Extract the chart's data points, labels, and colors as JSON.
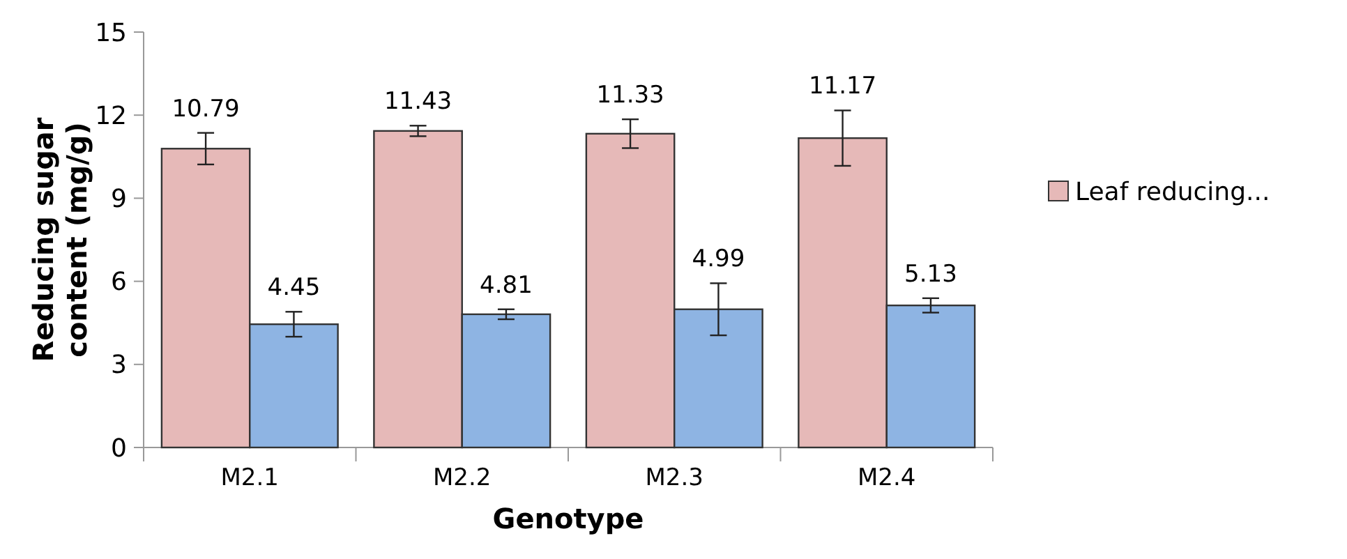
{
  "chart_data": {
    "type": "bar",
    "xlabel": "Genotype",
    "ylabel": "Reducing sugar content (mg/g)",
    "categories": [
      "M2.1",
      "M2.2",
      "M2.3",
      "M2.4"
    ],
    "series": [
      {
        "name": "Leaf reducing...",
        "color": "#e6b9b8",
        "values": [
          10.79,
          11.43,
          11.33,
          11.17
        ],
        "errors": [
          0.57,
          0.19,
          0.52,
          1.0
        ]
      },
      {
        "color": "#8eb4e3",
        "values": [
          4.45,
          4.81,
          4.99,
          5.13
        ],
        "errors": [
          0.45,
          0.18,
          0.94,
          0.26
        ]
      }
    ],
    "ylim": [
      0,
      15
    ],
    "yticks": [
      0,
      3,
      6,
      9,
      12,
      15
    ],
    "data_labels": true,
    "legend": "right",
    "grid": false
  }
}
